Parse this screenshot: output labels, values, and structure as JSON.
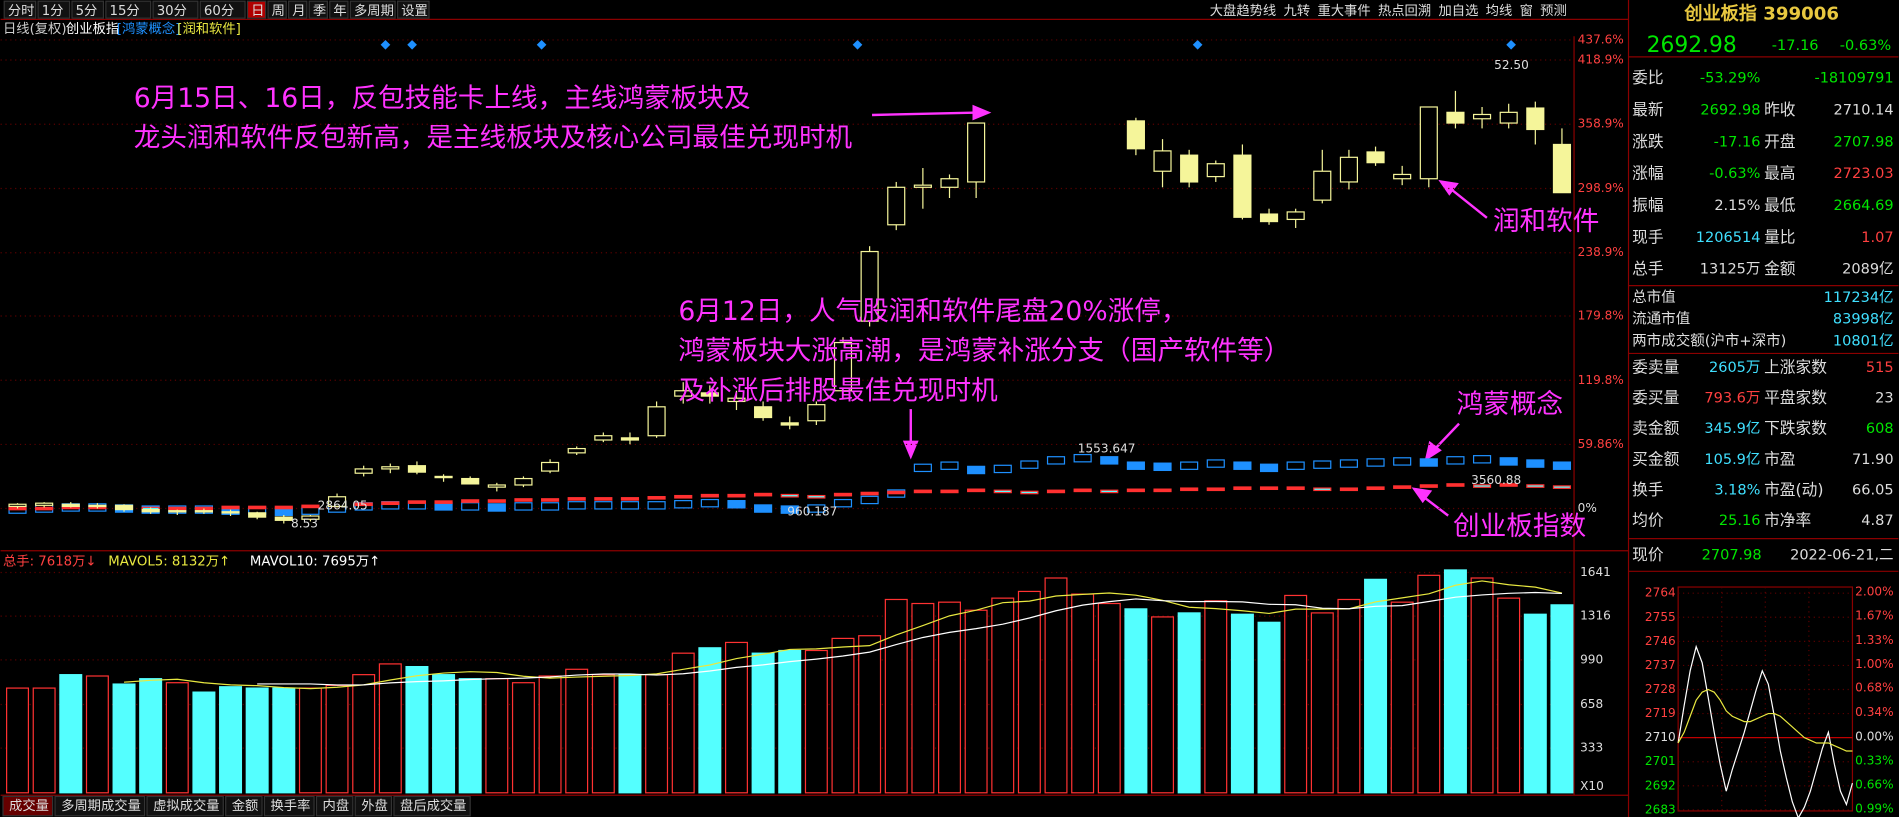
{
  "toolbar": {
    "periods": [
      "分时",
      "1分",
      "5分",
      "15分",
      "30分",
      "60分",
      "日",
      "周",
      "月",
      "季",
      "年",
      "多周期",
      "设置"
    ],
    "tools": [
      "大盘趋势线",
      "九转",
      "重大事件",
      "热点回溯",
      "加自选",
      "均线",
      "窗",
      "预测"
    ]
  },
  "chart_header": {
    "mode": "日线(复权)",
    "index": "创业板指",
    "overlays": [
      "[鸿蒙概念]",
      "[润和软件]"
    ]
  },
  "notes": [
    {
      "lines": [
        "6月15日、16日，反包技能卡上线，主线鸿蒙板块及",
        "龙头润和软件反包新高，是主线板块及核心公司最佳兑现时机"
      ]
    },
    {
      "lines": [
        "6月12日，人气股润和软件尾盘20%涨停，",
        "鸿蒙板块大涨高潮，是鸿蒙补涨分支（国产软件等）",
        "及补涨后排股最佳兑现时机"
      ]
    },
    {
      "lines": [
        "润和软件"
      ]
    },
    {
      "lines": [
        "鸿蒙概念"
      ]
    },
    {
      "lines": [
        "创业板指数"
      ]
    }
  ],
  "price_labels": [
    "52.50",
    "1553.647",
    "3560.88",
    "2864.05",
    "8.53",
    "960.187"
  ],
  "volume_header": [
    "总手: 7618万↓",
    "MAVOL5: 8132万↑",
    "MAVOL10: 7695万↑"
  ],
  "tabs": [
    "成交量",
    "多周期成交量",
    "虚拟成交量",
    "金额",
    "换手率",
    "内盘",
    "外盘",
    "盘后成交量"
  ],
  "quote": {
    "title": "创业板指 399006",
    "price": "2692.98",
    "change": "-17.16",
    "pct": "-0.63%",
    "rows": [
      [
        "委比",
        "-53.29%",
        "",
        "-18109791"
      ],
      [
        "最新",
        "2692.98",
        "昨收",
        "2710.14"
      ],
      [
        "涨跌",
        "-17.16",
        "开盘",
        "2707.98"
      ],
      [
        "涨幅",
        "-0.63%",
        "最高",
        "2723.03"
      ],
      [
        "振幅",
        "2.15%",
        "最低",
        "2664.69"
      ],
      [
        "现手",
        "1206514",
        "量比",
        "1.07"
      ],
      [
        "总手",
        "13125万",
        "金额",
        "2089亿"
      ]
    ],
    "wide_rows": [
      [
        "总市值",
        "117234亿"
      ],
      [
        "流通市值",
        "83998亿"
      ],
      [
        "两市成交额(沪市+深市)",
        "10801亿"
      ]
    ],
    "rows2": [
      [
        "委卖量",
        "2605万",
        "上涨家数",
        "515"
      ],
      [
        "委买量",
        "793.6万",
        "平盘家数",
        "23"
      ],
      [
        "卖金额",
        "345.9亿",
        "下跌家数",
        "608"
      ],
      [
        "买金额",
        "105.9亿",
        "市盈",
        "71.90"
      ],
      [
        "换手",
        "3.18%",
        "市盈(动)",
        "66.05"
      ],
      [
        "均价",
        "25.16",
        "市净率",
        "4.87"
      ]
    ],
    "footer": [
      "现价",
      "2707.98",
      "2022-06-21,二"
    ]
  },
  "chart_data": [
    {
      "type": "candlestick",
      "color": "#f5f59a",
      "ylim": [
        -36,
        441
      ],
      "yticks": [
        {
          "value": 437.6,
          "label": "437.6%"
        },
        {
          "value": 418.9,
          "label": "418.9%"
        },
        {
          "value": 358.9,
          "label": "358.9%"
        },
        {
          "value": 298.9,
          "label": "298.9%"
        },
        {
          "value": 238.9,
          "label": "238.9%"
        },
        {
          "value": 179.8,
          "label": "179.8%"
        },
        {
          "value": 119.8,
          "label": "119.8%"
        },
        {
          "value": 59.86,
          "label": "59.86%"
        },
        {
          "value": 0,
          "label": "0%"
        }
      ],
      "open": [
        2,
        3,
        4,
        2,
        3,
        -1,
        -3,
        -2,
        -3,
        -4,
        -8,
        -10,
        2,
        33,
        37,
        40,
        30,
        28,
        20,
        22,
        35,
        52,
        64,
        66,
        68,
        105,
        108,
        100,
        95,
        80,
        82,
        110,
        175,
        265,
        300,
        300,
        305,
        null,
        null,
        null,
        null,
        null,
        362,
        315,
        330,
        310,
        330,
        275,
        270,
        288,
        305,
        333,
        308,
        308,
        370,
        364,
        360,
        374,
        340
      ],
      "high": [
        5,
        6,
        6,
        5,
        4,
        1,
        -1,
        0,
        -1,
        -3,
        -6,
        -6,
        14,
        40,
        42,
        44,
        32,
        30,
        24,
        30,
        46,
        58,
        71,
        71,
        100,
        118,
        115,
        110,
        100,
        86,
        100,
        160,
        245,
        305,
        318,
        312,
        360,
        null,
        null,
        null,
        null,
        null,
        365,
        345,
        335,
        325,
        340,
        280,
        280,
        335,
        335,
        338,
        320,
        375,
        390,
        375,
        378,
        380,
        355
      ],
      "low": [
        0,
        1,
        1,
        0,
        -3,
        -5,
        -6,
        -5,
        -7,
        -10,
        -14,
        -12,
        1,
        30,
        33,
        32,
        25,
        23,
        16,
        20,
        33,
        50,
        62,
        60,
        66,
        98,
        98,
        92,
        82,
        74,
        78,
        106,
        170,
        260,
        280,
        290,
        290,
        null,
        null,
        null,
        null,
        null,
        330,
        300,
        300,
        305,
        270,
        265,
        262,
        285,
        298,
        320,
        302,
        300,
        355,
        355,
        355,
        340,
        295
      ],
      "close": [
        4,
        5,
        2,
        3,
        -1,
        -3,
        -2,
        -3,
        -4,
        -8,
        -11,
        -7,
        11,
        37,
        39,
        34,
        29,
        23,
        22,
        28,
        43,
        56,
        68,
        64,
        95,
        110,
        105,
        103,
        85,
        78,
        97,
        155,
        240,
        300,
        302,
        308,
        360,
        null,
        null,
        null,
        null,
        null,
        336,
        334,
        305,
        322,
        272,
        268,
        277,
        315,
        328,
        323,
        312,
        375,
        360,
        368,
        370,
        354,
        295
      ],
      "overlays": [
        {
          "color": "#1e90ff",
          "values": [
            -1,
            0,
            1,
            1,
            0,
            -1,
            -1,
            -1,
            -2,
            -2,
            -3,
            -2,
            0,
            2,
            3,
            3,
            2,
            2,
            1,
            2,
            2,
            3,
            3,
            3,
            3,
            4,
            5,
            4,
            0,
            -1,
            0,
            5,
            8,
            14,
            38,
            40,
            36,
            37,
            41,
            45,
            47,
            45,
            40,
            39,
            40,
            42,
            40,
            38,
            40,
            41,
            42,
            43,
            44,
            43,
            45,
            46,
            44,
            42,
            40
          ]
        },
        {
          "color": "#ff3030",
          "values": [
            0,
            0,
            1,
            1,
            1,
            0,
            0,
            0,
            1,
            1,
            1,
            2,
            3,
            4,
            5,
            6,
            6,
            7,
            7,
            8,
            8,
            9,
            9,
            9,
            10,
            11,
            12,
            12,
            13,
            12,
            11,
            13,
            14,
            15,
            16,
            16,
            17,
            16,
            15,
            16,
            17,
            16,
            17,
            17,
            18,
            18,
            19,
            19,
            19,
            18,
            18,
            19,
            20,
            21,
            22,
            21,
            22,
            21,
            20
          ]
        }
      ]
    },
    {
      "type": "volume",
      "unit_label": "X10",
      "up_color": "#ff3232",
      "down_color": "#54ffff",
      "ylim": [
        0,
        1668
      ],
      "yticks": [
        1641,
        1316,
        990,
        658,
        333
      ],
      "values": [
        780,
        780,
        880,
        870,
        810,
        850,
        820,
        750,
        790,
        780,
        780,
        780,
        800,
        880,
        960,
        940,
        880,
        850,
        850,
        820,
        870,
        920,
        880,
        880,
        880,
        1040,
        1080,
        1120,
        1040,
        1060,
        1060,
        1150,
        1170,
        1440,
        1410,
        1420,
        1360,
        1450,
        1500,
        1600,
        1480,
        1410,
        1370,
        1310,
        1340,
        1430,
        1330,
        1270,
        1470,
        1340,
        1440,
        1590,
        1420,
        1620,
        1660,
        1600,
        1450,
        1330,
        1400
      ]
    },
    {
      "type": "intraday",
      "ylim": [
        2681.7,
        2766.3
      ],
      "yticks": [
        2764,
        2755,
        2746,
        2737,
        2728,
        2719,
        2710,
        2701,
        2692,
        2683
      ],
      "y2lim": [
        -1.05,
        2.07
      ],
      "y2ticks": [
        {
          "value": 2.0,
          "label": "2.00%"
        },
        {
          "value": 1.67,
          "label": "1.67%"
        },
        {
          "value": 1.33,
          "label": "1.33%"
        },
        {
          "value": 1.0,
          "label": "1.00%"
        },
        {
          "value": 0.68,
          "label": "0.68%"
        },
        {
          "value": 0.34,
          "label": "0.34%"
        },
        {
          "value": 0,
          "label": "0.00%"
        },
        {
          "value": -0.33,
          "label": "0.33%"
        },
        {
          "value": -0.66,
          "label": "0.66%"
        },
        {
          "value": -0.99,
          "label": "0.99%"
        }
      ],
      "series": [
        {
          "color": "#ffffff",
          "values": [
            2708,
            2722,
            2735,
            2744,
            2738,
            2725,
            2712,
            2700,
            2690,
            2698,
            2705,
            2712,
            2720,
            2728,
            2735,
            2730,
            2718,
            2705,
            2695,
            2686,
            2680,
            2684,
            2690,
            2698,
            2706,
            2712,
            2700,
            2690,
            2685,
            2693
          ]
        },
        {
          "color": "#e8e840",
          "values": [
            2708,
            2712,
            2718,
            2724,
            2727,
            2728,
            2727,
            2724,
            2720,
            2718,
            2717,
            2716,
            2716,
            2717,
            2718,
            2719,
            2719,
            2718,
            2716,
            2714,
            2712,
            2710,
            2709,
            2708,
            2708,
            2708,
            2707,
            2706,
            2705,
            2705
          ]
        }
      ]
    }
  ]
}
